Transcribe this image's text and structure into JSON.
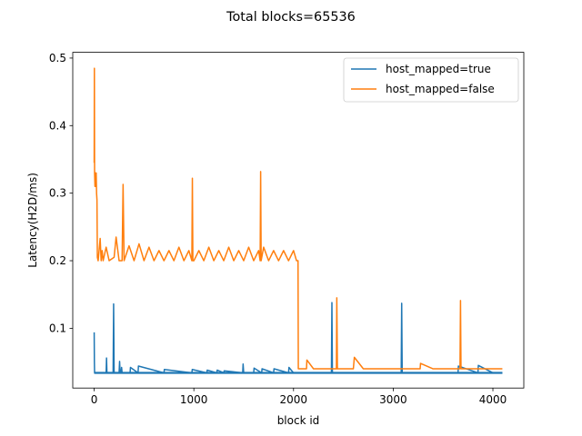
{
  "chart_data": {
    "type": "line",
    "title": "Total blocks=65536",
    "xlabel": "block id",
    "ylabel": "Latency(H2D/ms)",
    "xlim": [
      -215,
      4310
    ],
    "ylim": [
      0.0115,
      0.5085
    ],
    "xticks": [
      0,
      1000,
      2000,
      3000,
      4000
    ],
    "xtick_labels": [
      "0",
      "1000",
      "2000",
      "3000",
      "4000"
    ],
    "yticks": [
      0.1,
      0.2,
      0.3,
      0.4,
      0.5
    ],
    "ytick_labels": [
      "0.1",
      "0.2",
      "0.3",
      "0.4",
      "0.5"
    ],
    "grid": false,
    "legend_position": "top-right",
    "series": [
      {
        "name": "host_mapped=true",
        "color": "#1f77b4",
        "baseline": 0.034,
        "x": [
          0,
          2,
          4,
          6,
          10,
          120,
          124,
          128,
          190,
          195,
          200,
          250,
          255,
          260,
          270,
          275,
          280,
          360,
          364,
          440,
          444,
          700,
          704,
          980,
          984,
          1130,
          1134,
          1230,
          1234,
          1300,
          1304,
          1490,
          1494,
          1500,
          1600,
          1604,
          1680,
          1684,
          1800,
          1804,
          1950,
          1954,
          2000,
          2040,
          2100,
          2200,
          2300,
          2380,
          2385,
          2390,
          2500,
          2700,
          2900,
          3080,
          3085,
          3090,
          3300,
          3500,
          3650,
          3654,
          3850,
          3854,
          4000,
          4095
        ],
        "y": [
          0.094,
          0.05,
          0.034,
          0.034,
          0.034,
          0.034,
          0.056,
          0.034,
          0.034,
          0.136,
          0.034,
          0.034,
          0.051,
          0.034,
          0.034,
          0.042,
          0.034,
          0.034,
          0.042,
          0.034,
          0.044,
          0.034,
          0.039,
          0.034,
          0.039,
          0.034,
          0.038,
          0.034,
          0.038,
          0.034,
          0.037,
          0.034,
          0.047,
          0.034,
          0.034,
          0.041,
          0.034,
          0.04,
          0.034,
          0.04,
          0.034,
          0.042,
          0.034,
          0.034,
          0.034,
          0.034,
          0.034,
          0.034,
          0.138,
          0.034,
          0.034,
          0.034,
          0.034,
          0.034,
          0.137,
          0.034,
          0.034,
          0.034,
          0.034,
          0.044,
          0.034,
          0.045,
          0.034,
          0.034
        ]
      },
      {
        "name": "host_mapped=false",
        "color": "#ff7f0e",
        "x": [
          0,
          2,
          4,
          8,
          12,
          16,
          20,
          24,
          28,
          32,
          40,
          60,
          70,
          80,
          90,
          120,
          150,
          200,
          220,
          250,
          280,
          290,
          300,
          350,
          400,
          450,
          500,
          550,
          600,
          650,
          700,
          750,
          800,
          850,
          900,
          950,
          980,
          985,
          990,
          1000,
          1050,
          1100,
          1150,
          1200,
          1250,
          1300,
          1350,
          1400,
          1450,
          1500,
          1550,
          1600,
          1650,
          1665,
          1670,
          1675,
          1700,
          1750,
          1800,
          1850,
          1900,
          1950,
          2000,
          2030,
          2045,
          2048,
          2052,
          2100,
          2130,
          2134,
          2200,
          2300,
          2400,
          2430,
          2434,
          2440,
          2500,
          2600,
          2610,
          2700,
          2800,
          3000,
          3200,
          3270,
          3274,
          3400,
          3500,
          3600,
          3670,
          3675,
          3680,
          3800,
          3900,
          4000,
          4095
        ],
        "y": [
          0.345,
          0.485,
          0.33,
          0.31,
          0.33,
          0.31,
          0.33,
          0.3,
          0.29,
          0.205,
          0.2,
          0.233,
          0.2,
          0.215,
          0.2,
          0.22,
          0.2,
          0.205,
          0.235,
          0.2,
          0.2,
          0.313,
          0.2,
          0.222,
          0.2,
          0.225,
          0.2,
          0.22,
          0.2,
          0.215,
          0.2,
          0.215,
          0.2,
          0.22,
          0.2,
          0.215,
          0.2,
          0.322,
          0.2,
          0.2,
          0.215,
          0.2,
          0.22,
          0.2,
          0.215,
          0.2,
          0.22,
          0.2,
          0.215,
          0.2,
          0.22,
          0.2,
          0.215,
          0.2,
          0.332,
          0.2,
          0.22,
          0.2,
          0.215,
          0.2,
          0.215,
          0.2,
          0.215,
          0.2,
          0.2,
          0.04,
          0.04,
          0.04,
          0.04,
          0.053,
          0.04,
          0.04,
          0.04,
          0.04,
          0.145,
          0.04,
          0.04,
          0.04,
          0.057,
          0.04,
          0.04,
          0.04,
          0.04,
          0.04,
          0.048,
          0.04,
          0.04,
          0.04,
          0.04,
          0.141,
          0.04,
          0.04,
          0.04,
          0.04,
          0.04
        ]
      }
    ]
  }
}
